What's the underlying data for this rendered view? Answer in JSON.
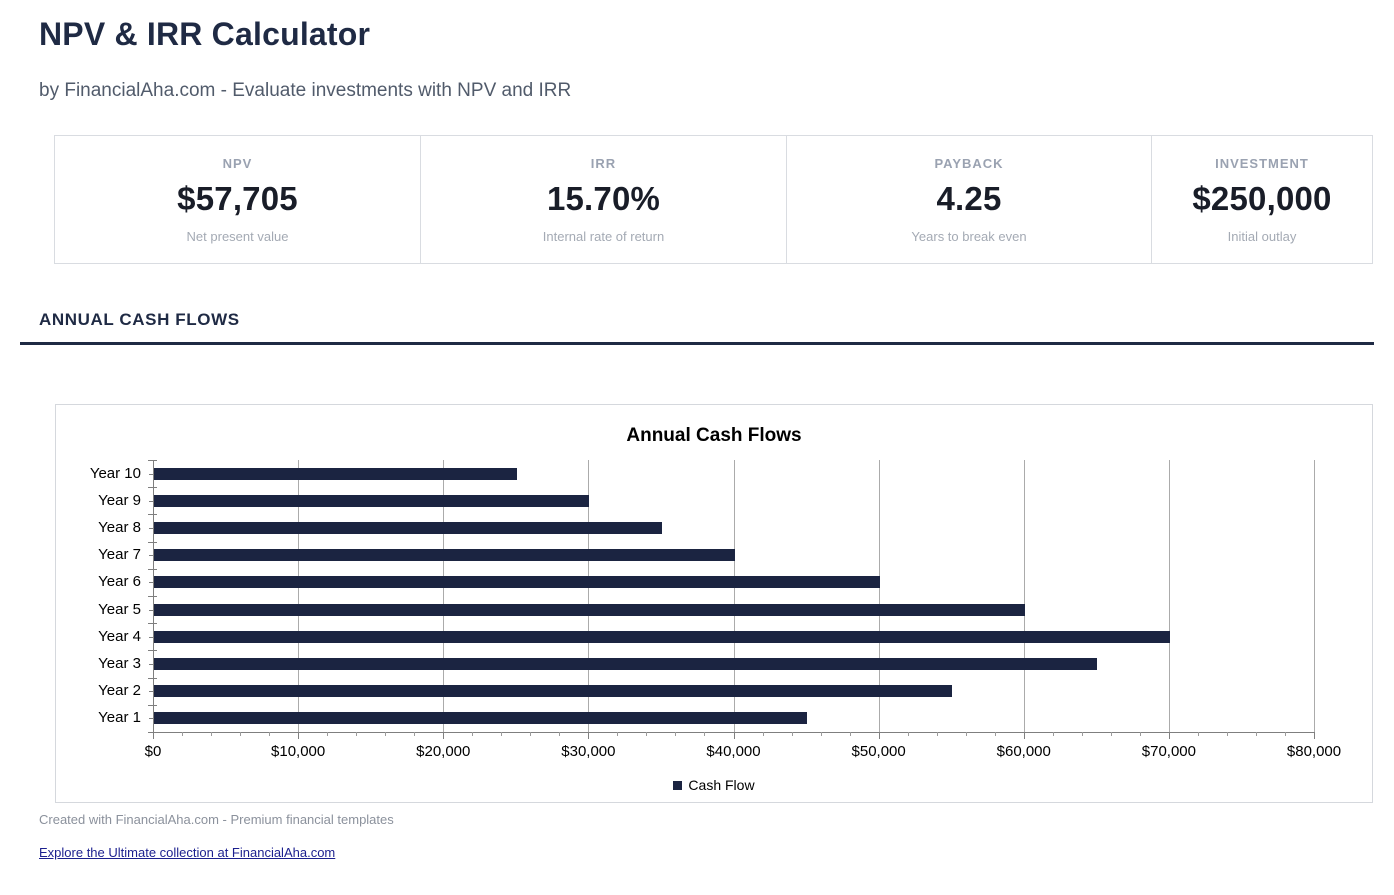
{
  "page": {
    "title": "NPV & IRR Calculator",
    "subtitle": "by FinancialAha.com - Evaluate investments with NPV and IRR"
  },
  "metrics": {
    "items": [
      {
        "label": "NPV",
        "value": "$57,705",
        "sublabel": "Net present value"
      },
      {
        "label": "IRR",
        "value": "15.70%",
        "sublabel": "Internal rate of return"
      },
      {
        "label": "PAYBACK",
        "value": "4.25",
        "sublabel": "Years to break even"
      },
      {
        "label": "INVESTMENT",
        "value": "$250,000",
        "sublabel": "Initial outlay"
      }
    ]
  },
  "section": {
    "title": "ANNUAL CASH FLOWS"
  },
  "chart_data": {
    "type": "bar",
    "orientation": "horizontal",
    "title": "Annual Cash Flows",
    "categories": [
      "Year 1",
      "Year 2",
      "Year 3",
      "Year 4",
      "Year 5",
      "Year 6",
      "Year 7",
      "Year 8",
      "Year 9",
      "Year 10"
    ],
    "values": [
      45000,
      55000,
      65000,
      70000,
      60000,
      50000,
      40000,
      35000,
      30000,
      25000
    ],
    "series_name": "Cash Flow",
    "xlabel": "",
    "ylabel": "",
    "xlim": [
      0,
      80000
    ],
    "x_tick_step": 10000,
    "x_minor_tick_step": 2000,
    "x_tick_labels": [
      "$0",
      "$10,000",
      "$20,000",
      "$30,000",
      "$40,000",
      "$50,000",
      "$60,000",
      "$70,000",
      "$80,000"
    ],
    "grid": "vertical-major",
    "legend_position": "bottom",
    "category_axis_order": "Year 10 at top, Year 1 at bottom",
    "bar_color": "#1b2441"
  },
  "footer": {
    "created_text": "Created with FinancialAha.com - Premium financial templates",
    "link_text": "Explore the Ultimate collection at FinancialAha.com"
  },
  "colors": {
    "heading": "#1f2a44",
    "subtitle": "#515b6b",
    "metric_label": "#9aa2b1",
    "metric_value": "#191d28",
    "metric_sublabel": "#a4aab4",
    "card_border": "#d9dce1",
    "section_divider": "#1f2a44",
    "bar": "#1b2441",
    "gridline": "#ababab",
    "axis": "#7f7f7f",
    "footer_text": "#8b919c",
    "link": "#1b1f8e"
  }
}
